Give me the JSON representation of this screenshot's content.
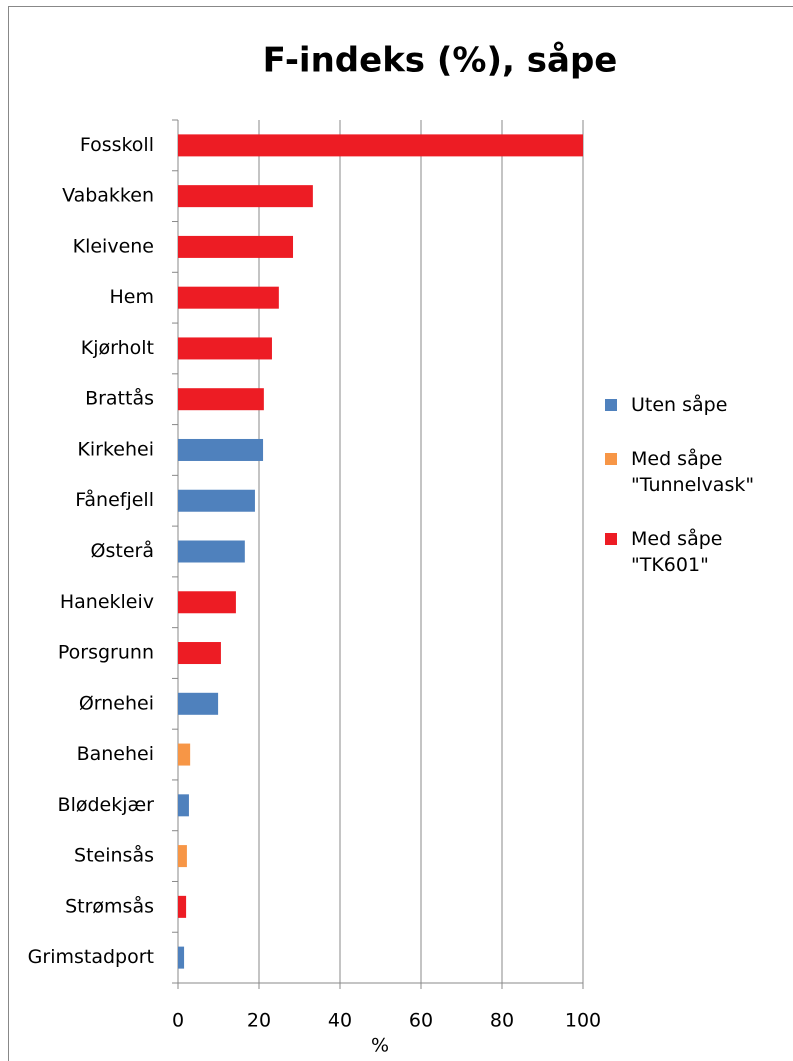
{
  "chart_data": {
    "type": "barh",
    "title": "F-indeks (%), såpe",
    "x_label": "%",
    "categories": [
      "Fosskoll",
      "Vabakken",
      "Kleivene",
      "Hem",
      "Kjørholt",
      "Brattås",
      "Kirkehei",
      "Fånefjell",
      "Østerå",
      "Hanekleiv",
      "Porsgrunn",
      "Ørnehei",
      "Banehei",
      "Blødekjær",
      "Steinsås",
      "Strømsås",
      "Grimstadport"
    ],
    "series": [
      {
        "name": "Uten såpe",
        "color": "#4f81bd",
        "values": [
          null,
          null,
          null,
          null,
          null,
          null,
          21,
          19,
          16.5,
          null,
          null,
          9.9,
          null,
          2.7,
          null,
          null,
          1.5
        ]
      },
      {
        "name": "Med såpe \"Tunnelvask\"",
        "color": "#f79646",
        "values": [
          null,
          null,
          null,
          null,
          null,
          null,
          null,
          null,
          null,
          null,
          null,
          null,
          3,
          null,
          2.2,
          null,
          null
        ]
      },
      {
        "name": "Med såpe \"TK601\"",
        "color": "#ed1c24",
        "values": [
          100,
          33.3,
          28.4,
          24.9,
          23.2,
          21.2,
          null,
          null,
          null,
          14.3,
          10.6,
          null,
          null,
          null,
          null,
          2,
          null
        ]
      }
    ],
    "xlim": [
      0,
      100
    ],
    "xticks": [
      0,
      20,
      40,
      60,
      80,
      100
    ],
    "grid": true,
    "legend": "right"
  }
}
